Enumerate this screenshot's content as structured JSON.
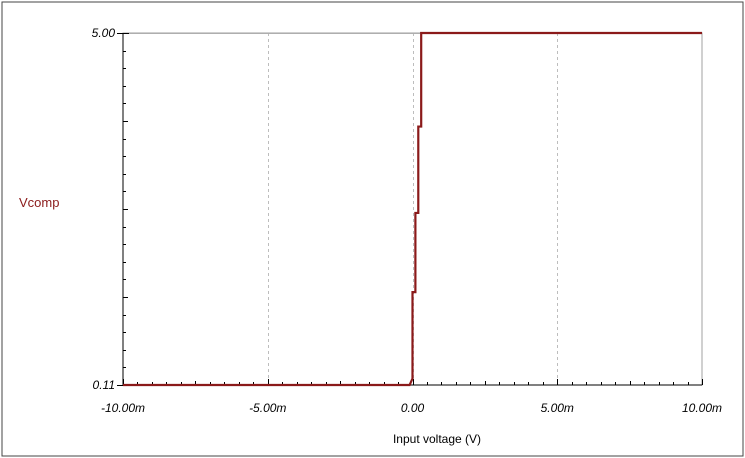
{
  "chart_data": {
    "type": "line",
    "title": "",
    "xlabel": "Input voltage (V)",
    "ylabel": "Vcomp",
    "xlim": [
      -0.01,
      0.01
    ],
    "ylim": [
      0.11,
      5.0
    ],
    "grid": {
      "x": true,
      "y": false
    },
    "x_ticks": [
      {
        "value": -0.01,
        "label": "-10.00m"
      },
      {
        "value": -0.005,
        "label": "-5.00m"
      },
      {
        "value": 0.0,
        "label": "0.00"
      },
      {
        "value": 0.005,
        "label": "5.00m"
      },
      {
        "value": 0.01,
        "label": "10.00m"
      }
    ],
    "y_ticks": [
      {
        "value": 0.11,
        "label": "0.11"
      },
      {
        "value": 5.0,
        "label": "5.00"
      }
    ],
    "series": [
      {
        "name": "Vcomp",
        "color": "#8b1a1a",
        "points": [
          [
            -0.01,
            0.11
          ],
          [
            -0.0001,
            0.11
          ],
          [
            0.0,
            0.2
          ],
          [
            0.0,
            1.4
          ],
          [
            0.0001,
            1.4
          ],
          [
            0.0001,
            2.5
          ],
          [
            0.0002,
            2.5
          ],
          [
            0.0002,
            3.7
          ],
          [
            0.0003,
            3.7
          ],
          [
            0.0003,
            5.0
          ],
          [
            0.01,
            5.0
          ]
        ]
      }
    ]
  }
}
